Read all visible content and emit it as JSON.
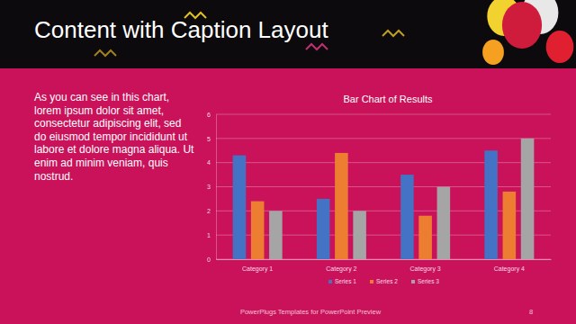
{
  "slide": {
    "title": "Content with Caption Layout",
    "caption": [
      "As you can see in this chart,",
      "lorem ipsum dolor sit amet,",
      "consectetur adipiscing elit, sed",
      "do eiusmod tempor incididunt ut",
      "labore et dolore magna aliqua. Ut",
      "enim ad minim veniam, quis",
      "nostrud."
    ],
    "footer": "PowerPlugs Templates for PowerPoint Preview",
    "page_number": "8"
  },
  "chart_data": {
    "type": "bar",
    "title": "Bar Chart of Results",
    "categories": [
      "Category 1",
      "Category 2",
      "Category 3",
      "Category 4"
    ],
    "series": [
      {
        "name": "Series 1",
        "color": "#4472c4",
        "values": [
          4.3,
          2.5,
          3.5,
          4.5
        ]
      },
      {
        "name": "Series 2",
        "color": "#ed7d31",
        "values": [
          2.4,
          4.4,
          1.8,
          2.8
        ]
      },
      {
        "name": "Series 3",
        "color": "#a5a5a5",
        "values": [
          2.0,
          2.0,
          3.0,
          5.0
        ]
      }
    ],
    "ylim": [
      0,
      6
    ],
    "yticks": [
      0,
      1,
      2,
      3,
      4,
      5,
      6
    ],
    "grid": true,
    "legend": "bottom"
  }
}
